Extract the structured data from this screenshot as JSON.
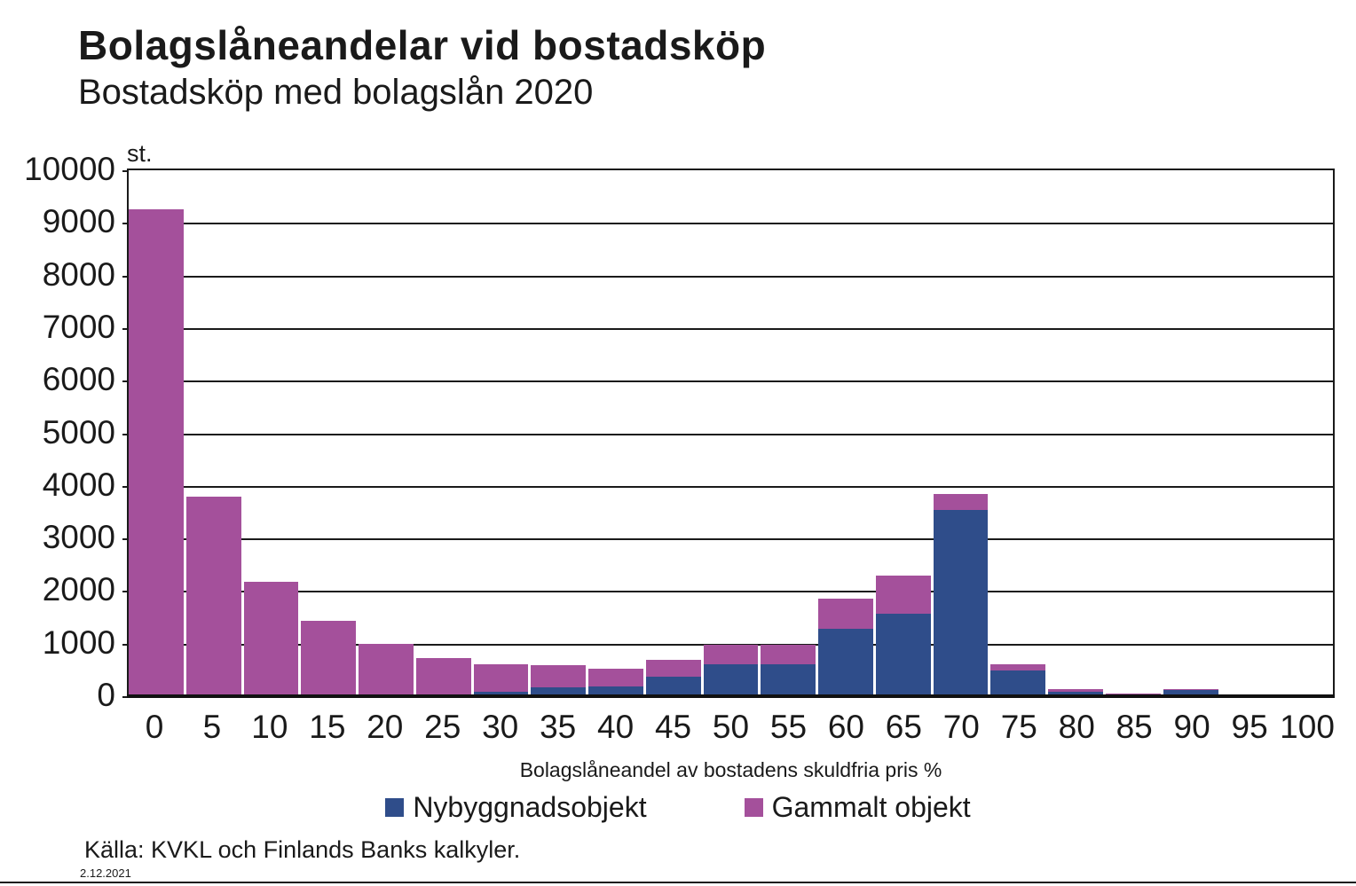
{
  "header": {
    "title": "Bolagslåneandelar vid bostadsköp",
    "subtitle": "Bostadsköp med bolagslån 2020"
  },
  "chart_data": {
    "type": "bar",
    "stacked": true,
    "title": "Bolagslåneandelar vid bostadsköp",
    "subtitle": "Bostadsköp med bolagslån 2020",
    "unit_label": "st.",
    "xlabel": "Bolagslåneandel av bostadens skuldfria pris %",
    "ylabel": "st.",
    "ylim": [
      0,
      10000
    ],
    "ytick_step": 1000,
    "grid": "horizontal",
    "legend_position": "bottom",
    "categories": [
      "0",
      "5",
      "10",
      "15",
      "20",
      "25",
      "30",
      "35",
      "40",
      "45",
      "50",
      "55",
      "60",
      "65",
      "70",
      "75",
      "80",
      "85",
      "90",
      "95",
      "100"
    ],
    "series": [
      {
        "name": "Nybyggnadsobjekt",
        "color": "#2F4D8A",
        "values": [
          0,
          0,
          0,
          0,
          0,
          0,
          90,
          170,
          190,
          370,
          600,
          600,
          1290,
          1570,
          3550,
          490,
          80,
          20,
          125,
          5,
          0
        ]
      },
      {
        "name": "Gammalt objekt",
        "color": "#A4509B",
        "values": [
          9250,
          3800,
          2170,
          1430,
          1000,
          720,
          510,
          420,
          330,
          330,
          380,
          380,
          570,
          730,
          300,
          120,
          60,
          30,
          15,
          25,
          5
        ]
      }
    ]
  },
  "footer": {
    "source": "Källa: KVKL och Finlands Banks kalkyler.",
    "date": "2.12.2021"
  }
}
